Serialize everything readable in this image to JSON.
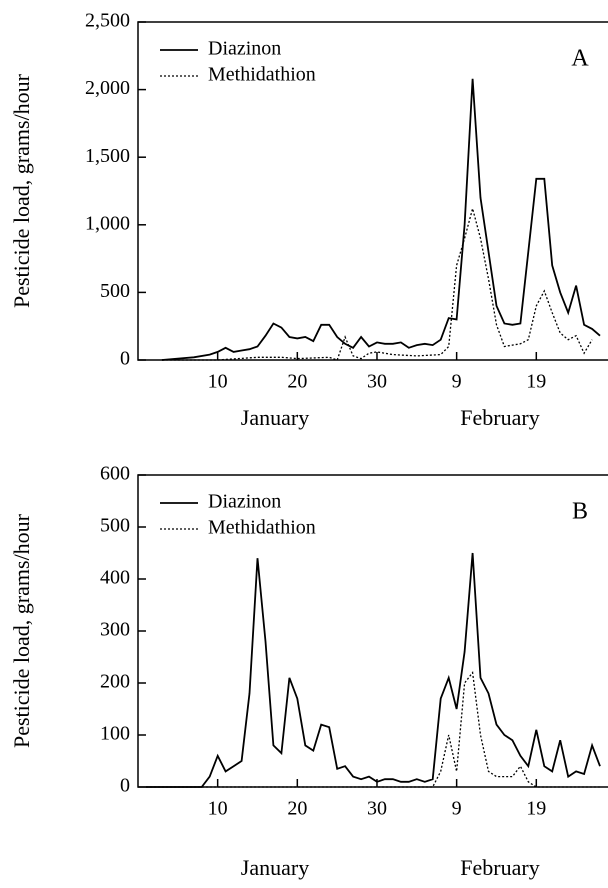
{
  "chart_data": [
    {
      "type": "line",
      "panel_label": "A",
      "y_label": "Pesticide load, grams/hour",
      "x_group_labels": [
        "January",
        "February"
      ],
      "xlim": [
        0,
        59
      ],
      "xticks": [
        10,
        20,
        30,
        {
          "value": 40,
          "label": "9"
        },
        {
          "value": 50,
          "label": "19"
        }
      ],
      "ylim": [
        0,
        2500
      ],
      "yticks": [
        0,
        500,
        {
          "value": 1000,
          "label": "1,000"
        },
        {
          "value": 1500,
          "label": "1,500"
        },
        {
          "value": 2000,
          "label": "2,000"
        },
        {
          "value": 2500,
          "label": "2,500"
        }
      ],
      "legend": "upper left",
      "series": [
        {
          "name": "Diazinon",
          "color": "#000000",
          "dash": "solid",
          "x": [
            3,
            5,
            7,
            9,
            10,
            11,
            12,
            13,
            14,
            15,
            16,
            17,
            18,
            19,
            20,
            21,
            22,
            23,
            24,
            25,
            26,
            27,
            28,
            29,
            30,
            31,
            32,
            33,
            34,
            35,
            36,
            37,
            38,
            39,
            40,
            41,
            42,
            43,
            44,
            45,
            46,
            47,
            48,
            49,
            50,
            51,
            52,
            53,
            54,
            55,
            56,
            57,
            58
          ],
          "values": [
            0,
            10,
            20,
            40,
            60,
            90,
            60,
            70,
            80,
            100,
            180,
            270,
            240,
            170,
            160,
            170,
            140,
            260,
            260,
            170,
            120,
            90,
            170,
            100,
            130,
            120,
            120,
            130,
            90,
            110,
            120,
            110,
            150,
            310,
            300,
            1000,
            2080,
            1200,
            800,
            400,
            270,
            260,
            270,
            800,
            1340,
            1340,
            700,
            500,
            350,
            550,
            260,
            230,
            180
          ]
        },
        {
          "name": "Methidathion",
          "color": "#000000",
          "dash": "dotted",
          "x": [
            3,
            10,
            15,
            18,
            20,
            24,
            25,
            26,
            27,
            28,
            29,
            30,
            32,
            35,
            38,
            39,
            40,
            41,
            42,
            43,
            44,
            45,
            46,
            47,
            48,
            49,
            50,
            51,
            52,
            53,
            54,
            55,
            56,
            57
          ],
          "values": [
            0,
            0,
            20,
            20,
            10,
            20,
            0,
            170,
            30,
            10,
            50,
            60,
            40,
            30,
            40,
            100,
            700,
            900,
            1120,
            900,
            600,
            260,
            100,
            110,
            120,
            150,
            400,
            510,
            350,
            200,
            150,
            180,
            50,
            150
          ]
        }
      ]
    },
    {
      "type": "line",
      "panel_label": "B",
      "y_label": "Pesticide load, grams/hour",
      "x_group_labels": [
        "January",
        "February"
      ],
      "xlim": [
        0,
        59
      ],
      "xticks": [
        10,
        20,
        30,
        {
          "value": 40,
          "label": "9"
        },
        {
          "value": 50,
          "label": "19"
        }
      ],
      "ylim": [
        0,
        600
      ],
      "yticks": [
        0,
        100,
        200,
        300,
        400,
        500,
        600
      ],
      "legend": "upper left",
      "series": [
        {
          "name": "Diazinon",
          "color": "#000000",
          "dash": "solid",
          "x": [
            1,
            8,
            9,
            10,
            11,
            12,
            13,
            14,
            15,
            16,
            17,
            18,
            19,
            20,
            21,
            22,
            23,
            24,
            25,
            26,
            27,
            28,
            29,
            30,
            31,
            32,
            33,
            34,
            35,
            36,
            37,
            38,
            39,
            40,
            41,
            42,
            43,
            44,
            45,
            46,
            47,
            48,
            49,
            50,
            51,
            52,
            53,
            54,
            55,
            56,
            57,
            58
          ],
          "values": [
            0,
            0,
            20,
            60,
            30,
            40,
            50,
            180,
            440,
            280,
            80,
            65,
            210,
            170,
            80,
            70,
            120,
            115,
            35,
            40,
            20,
            15,
            20,
            10,
            15,
            15,
            10,
            10,
            15,
            10,
            15,
            170,
            210,
            150,
            260,
            450,
            210,
            180,
            120,
            100,
            90,
            60,
            40,
            110,
            40,
            30,
            90,
            20,
            30,
            25,
            80,
            40
          ]
        },
        {
          "name": "Methidathion",
          "color": "#000000",
          "dash": "dotted",
          "x": [
            1,
            37,
            38,
            39,
            40,
            41,
            42,
            43,
            44,
            45,
            46,
            47,
            48,
            49,
            50,
            58
          ],
          "values": [
            0,
            0,
            30,
            100,
            30,
            200,
            220,
            100,
            30,
            20,
            20,
            20,
            40,
            10,
            0,
            0
          ]
        }
      ]
    }
  ]
}
